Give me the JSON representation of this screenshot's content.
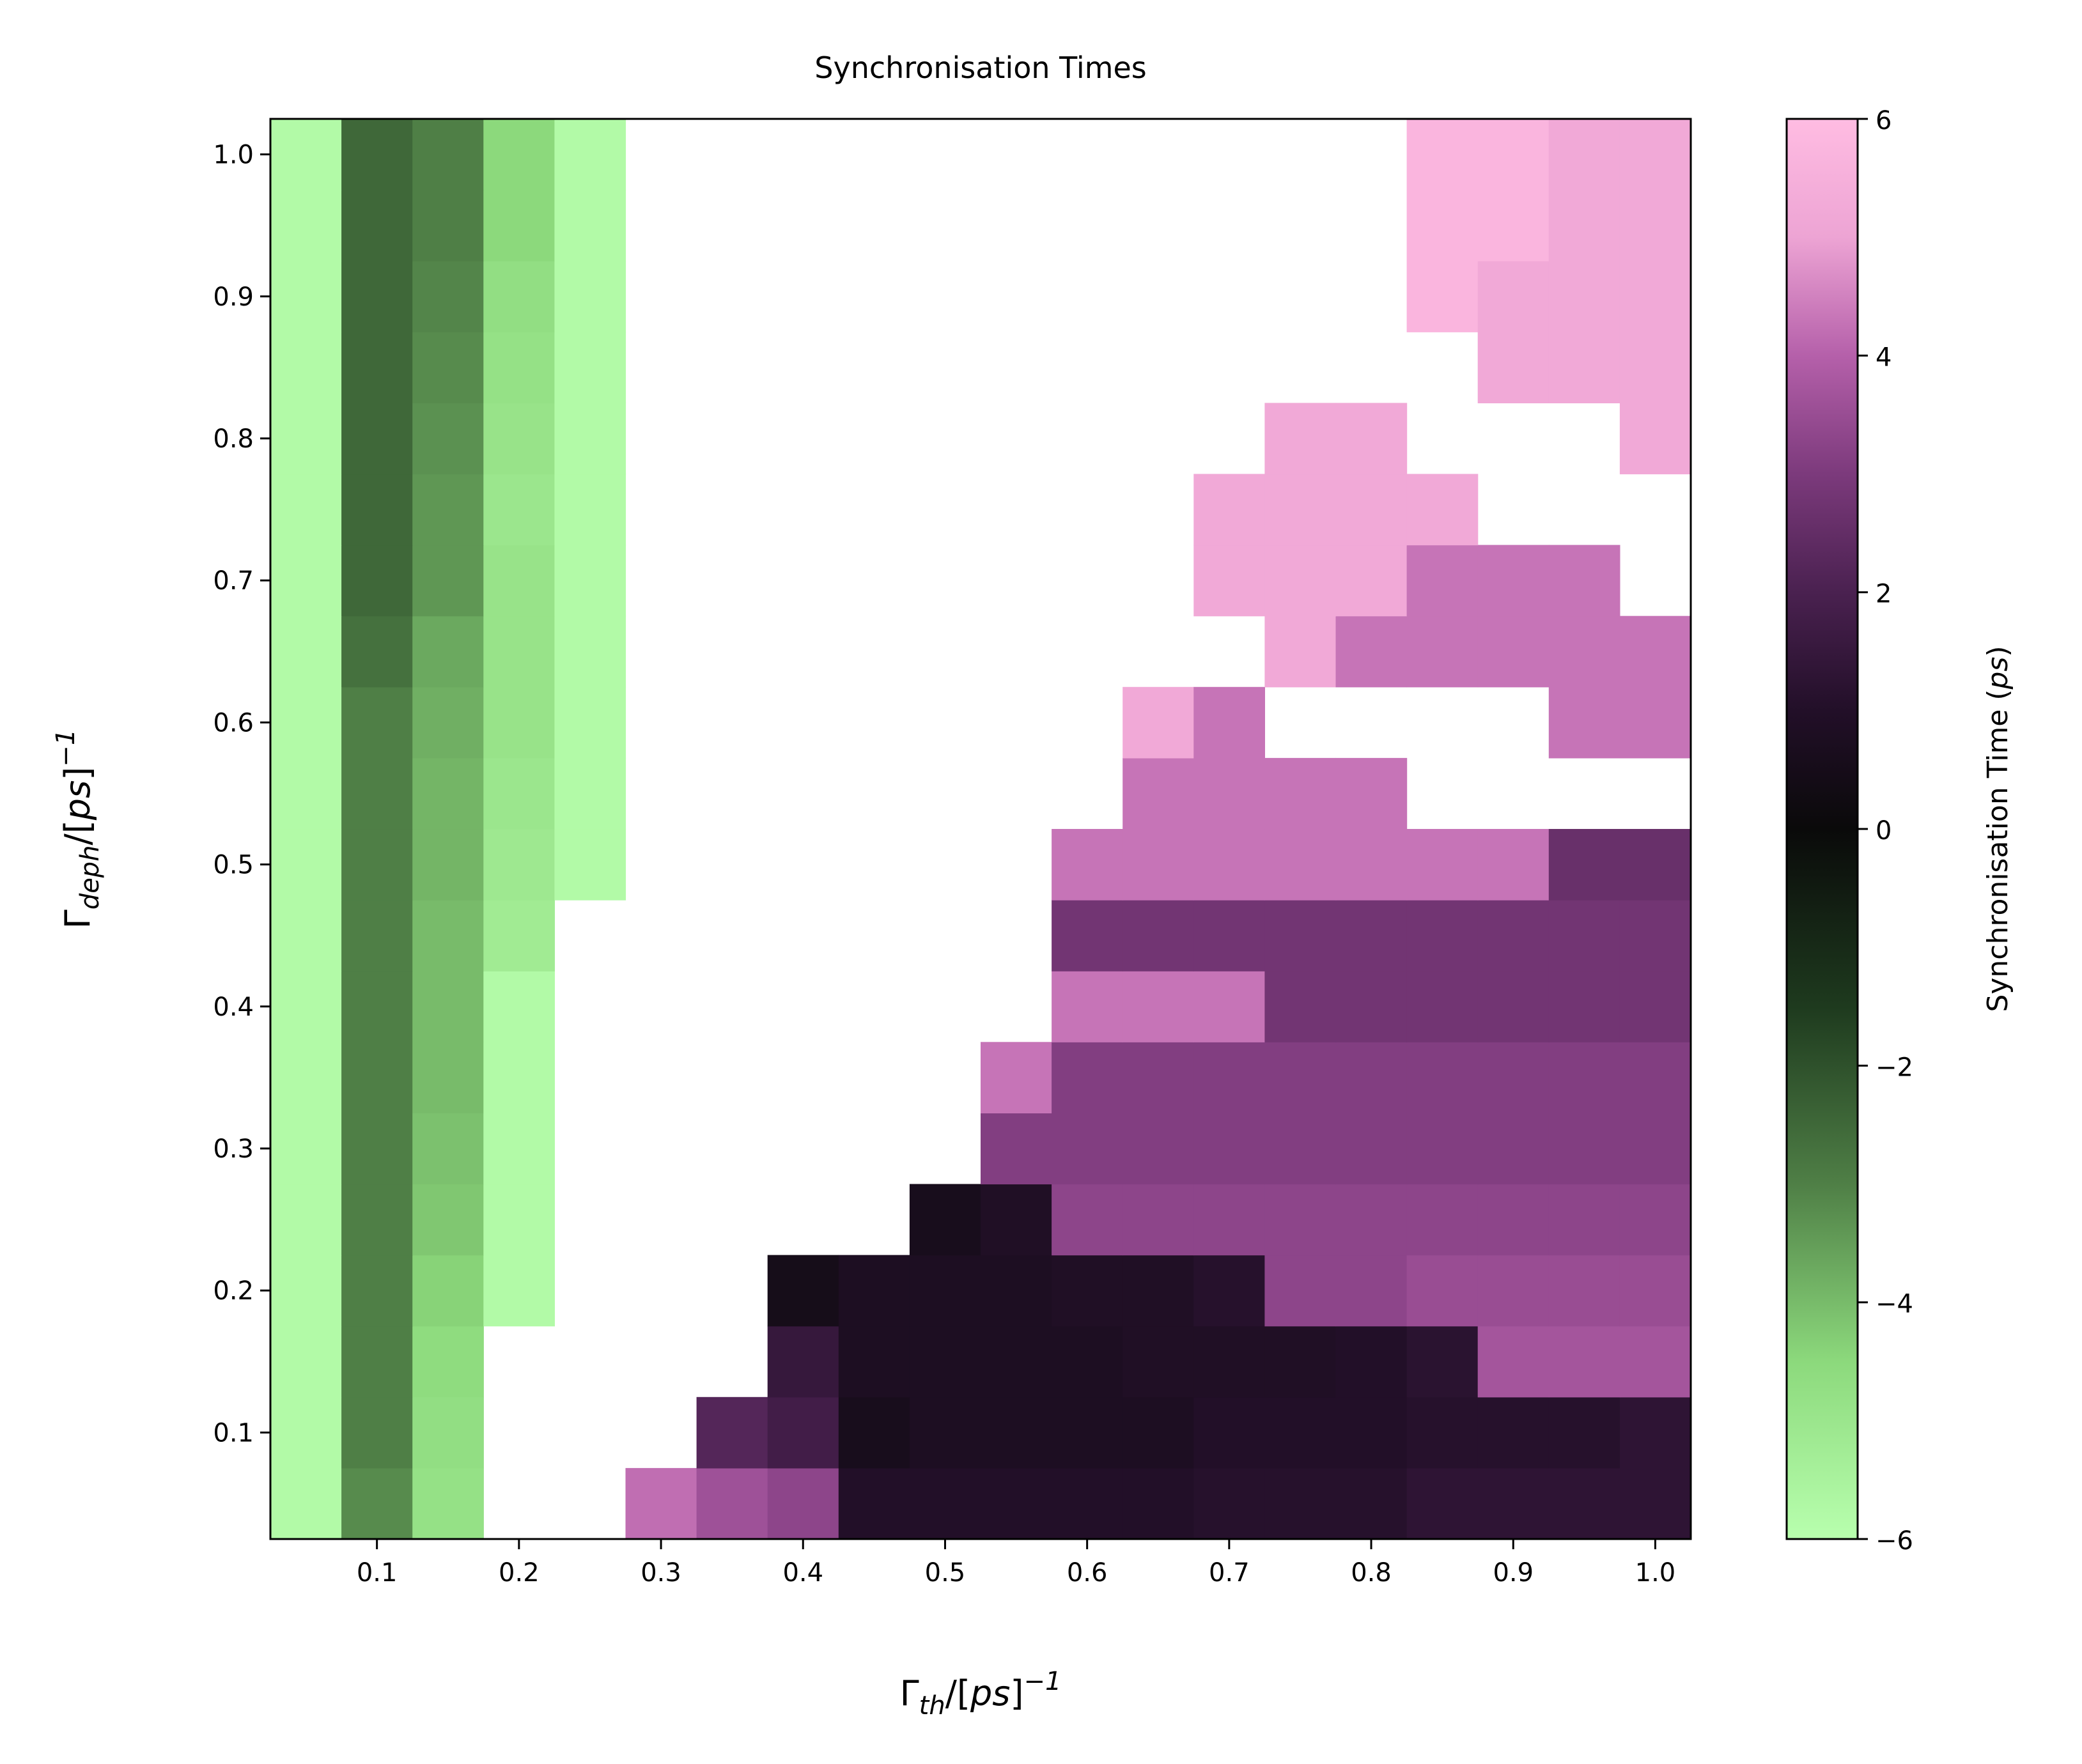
{
  "chart_data": {
    "type": "heatmap",
    "title": "Synchronisation Times",
    "xlabel": {
      "symbol": "Γ",
      "subscript": "th",
      "rest_prefix": "/[",
      "rest_italic": "ps",
      "rest_suffix": "]",
      "superscript": "−1"
    },
    "ylabel": {
      "symbol": "Γ",
      "subscript": "deph",
      "rest_prefix": "/[",
      "rest_italic": "ps",
      "rest_suffix": "]",
      "superscript": "−1"
    },
    "x": [
      0.05,
      0.1,
      0.15,
      0.2,
      0.25,
      0.3,
      0.35,
      0.4,
      0.45,
      0.5,
      0.55,
      0.6,
      0.65,
      0.7,
      0.75,
      0.8,
      0.85,
      0.9,
      0.95,
      1.0
    ],
    "y": [
      0.05,
      0.1,
      0.15,
      0.2,
      0.25,
      0.3,
      0.35,
      0.4,
      0.45,
      0.5,
      0.55,
      0.6,
      0.65,
      0.7,
      0.75,
      0.8,
      0.85,
      0.9,
      0.95,
      1.0
    ],
    "xlim": [
      0.025,
      1.025
    ],
    "ylim": [
      0.025,
      1.025
    ],
    "xticks": [
      0.1,
      0.2,
      0.3,
      0.4,
      0.5,
      0.6,
      0.7,
      0.8,
      0.9,
      1.0
    ],
    "xtick_labels": [
      "0.1",
      "0.2",
      "0.3",
      "0.4",
      "0.5",
      "0.6",
      "0.7",
      "0.8",
      "0.9",
      "1.0"
    ],
    "yticks": [
      0.1,
      0.2,
      0.3,
      0.4,
      0.5,
      0.6,
      0.7,
      0.8,
      0.9,
      1.0
    ],
    "ytick_labels": [
      "0.1",
      "0.2",
      "0.3",
      "0.4",
      "0.5",
      "0.6",
      "0.7",
      "0.8",
      "0.9",
      "1.0"
    ],
    "values": [
      [
        -5.8,
        -3.2,
        -4.8,
        null,
        null,
        4.2,
        3.6,
        3.3,
        1.0,
        1.0,
        1.0,
        1.0,
        1.0,
        1.1,
        1.1,
        1.1,
        1.3,
        1.3,
        1.3,
        1.3
      ],
      [
        -5.8,
        -3.0,
        -4.7,
        null,
        null,
        null,
        2.2,
        1.8,
        0.6,
        0.8,
        0.8,
        0.8,
        0.8,
        1.0,
        1.0,
        1.0,
        1.1,
        1.1,
        1.1,
        1.3
      ],
      [
        -5.8,
        -3.0,
        -4.6,
        null,
        null,
        null,
        null,
        1.5,
        0.8,
        0.8,
        0.8,
        0.8,
        0.9,
        0.9,
        0.9,
        1.0,
        1.2,
        3.7,
        3.7,
        3.7
      ],
      [
        -5.8,
        -3.0,
        -4.4,
        -5.8,
        null,
        null,
        null,
        0.5,
        0.8,
        0.8,
        0.8,
        0.9,
        0.9,
        1.1,
        3.3,
        3.3,
        3.5,
        3.5,
        3.5,
        3.5
      ],
      [
        -5.8,
        -3.0,
        -4.2,
        -5.8,
        null,
        null,
        null,
        null,
        null,
        0.6,
        0.9,
        3.3,
        3.3,
        3.3,
        3.3,
        3.3,
        3.3,
        3.3,
        3.3,
        3.3
      ],
      [
        -5.8,
        -3.0,
        -4.1,
        -5.8,
        null,
        null,
        null,
        null,
        null,
        null,
        3.1,
        3.1,
        3.1,
        3.1,
        3.1,
        3.1,
        3.1,
        3.1,
        3.1,
        3.1
      ],
      [
        -5.8,
        -3.0,
        -4.0,
        -5.8,
        null,
        null,
        null,
        null,
        null,
        null,
        4.3,
        3.1,
        3.1,
        3.1,
        3.1,
        3.1,
        3.1,
        3.1,
        3.1,
        3.1
      ],
      [
        -5.8,
        -3.0,
        -4.0,
        -5.8,
        null,
        null,
        null,
        null,
        null,
        null,
        null,
        4.3,
        4.3,
        4.3,
        2.8,
        2.8,
        2.8,
        2.8,
        2.8,
        2.8
      ],
      [
        -5.8,
        -3.0,
        -4.0,
        -5.2,
        null,
        null,
        null,
        null,
        null,
        null,
        null,
        2.8,
        2.8,
        2.8,
        2.8,
        2.8,
        2.8,
        2.8,
        2.8,
        2.8
      ],
      [
        -5.8,
        -3.0,
        -3.9,
        -5.1,
        -5.8,
        null,
        null,
        null,
        null,
        null,
        null,
        4.3,
        4.3,
        4.3,
        4.3,
        4.3,
        4.3,
        4.3,
        2.6,
        2.6
      ],
      [
        -5.8,
        -3.0,
        -3.9,
        -5.0,
        -5.8,
        null,
        null,
        null,
        null,
        null,
        null,
        null,
        4.3,
        4.3,
        4.3,
        4.3,
        null,
        null,
        null,
        null
      ],
      [
        -5.8,
        -3.0,
        -3.8,
        -4.9,
        -5.8,
        null,
        null,
        null,
        null,
        null,
        null,
        null,
        5.2,
        4.3,
        null,
        null,
        null,
        null,
        4.3,
        4.3
      ],
      [
        -5.8,
        -2.7,
        -3.7,
        -4.9,
        -5.8,
        null,
        null,
        null,
        null,
        null,
        null,
        null,
        null,
        null,
        5.2,
        4.3,
        4.3,
        4.3,
        4.3,
        4.3
      ],
      [
        -5.8,
        -2.5,
        -3.4,
        -4.9,
        -5.8,
        null,
        null,
        null,
        null,
        null,
        null,
        null,
        null,
        5.2,
        5.2,
        5.2,
        4.3,
        4.3,
        4.3,
        null
      ],
      [
        -5.8,
        -2.5,
        -3.4,
        -5.0,
        -5.8,
        null,
        null,
        null,
        null,
        null,
        null,
        null,
        null,
        5.2,
        5.2,
        5.2,
        5.2,
        null,
        null,
        null
      ],
      [
        -5.8,
        -2.5,
        -3.3,
        -4.9,
        -5.8,
        null,
        null,
        null,
        null,
        null,
        null,
        null,
        null,
        null,
        5.2,
        5.2,
        null,
        null,
        null,
        5.2
      ],
      [
        -5.8,
        -2.5,
        -3.2,
        -4.8,
        -5.8,
        null,
        null,
        null,
        null,
        null,
        null,
        null,
        null,
        null,
        null,
        null,
        null,
        5.2,
        5.2,
        5.2
      ],
      [
        -5.8,
        -2.5,
        -3.1,
        -4.7,
        -5.8,
        null,
        null,
        null,
        null,
        null,
        null,
        null,
        null,
        null,
        null,
        null,
        5.7,
        5.2,
        5.2,
        5.2
      ],
      [
        -5.8,
        -2.5,
        -3.0,
        -4.5,
        -5.8,
        null,
        null,
        null,
        null,
        null,
        null,
        null,
        null,
        null,
        null,
        null,
        5.7,
        5.7,
        5.2,
        5.2
      ],
      [
        -5.8,
        -2.5,
        -3.0,
        -4.5,
        -5.8,
        null,
        null,
        null,
        null,
        null,
        null,
        null,
        null,
        null,
        null,
        null,
        5.7,
        5.7,
        5.2,
        5.2
      ]
    ],
    "colorbar": {
      "label": "Synchronisation Time (",
      "label_unit": "ps",
      "label_close": ")",
      "vmin": -6,
      "vmax": 6,
      "ticks": [
        6,
        4,
        2,
        0,
        -2,
        -4,
        -6
      ],
      "tick_labels": [
        "6",
        "4",
        "2",
        "0",
        "−2",
        "−4",
        "−6"
      ],
      "colormap_stops": [
        {
          "value": -6,
          "color": "#b8ffae"
        },
        {
          "value": -4.5,
          "color": "#8cd97c"
        },
        {
          "value": -3,
          "color": "#4f7f46"
        },
        {
          "value": -1.5,
          "color": "#1e3a1e"
        },
        {
          "value": 0,
          "color": "#0a0a0a"
        },
        {
          "value": 1,
          "color": "#220f28"
        },
        {
          "value": 2,
          "color": "#4a2150"
        },
        {
          "value": 3,
          "color": "#7c3a7c"
        },
        {
          "value": 4,
          "color": "#b560aa"
        },
        {
          "value": 5,
          "color": "#eda4d4"
        },
        {
          "value": 6,
          "color": "#ffbce2"
        }
      ]
    }
  }
}
